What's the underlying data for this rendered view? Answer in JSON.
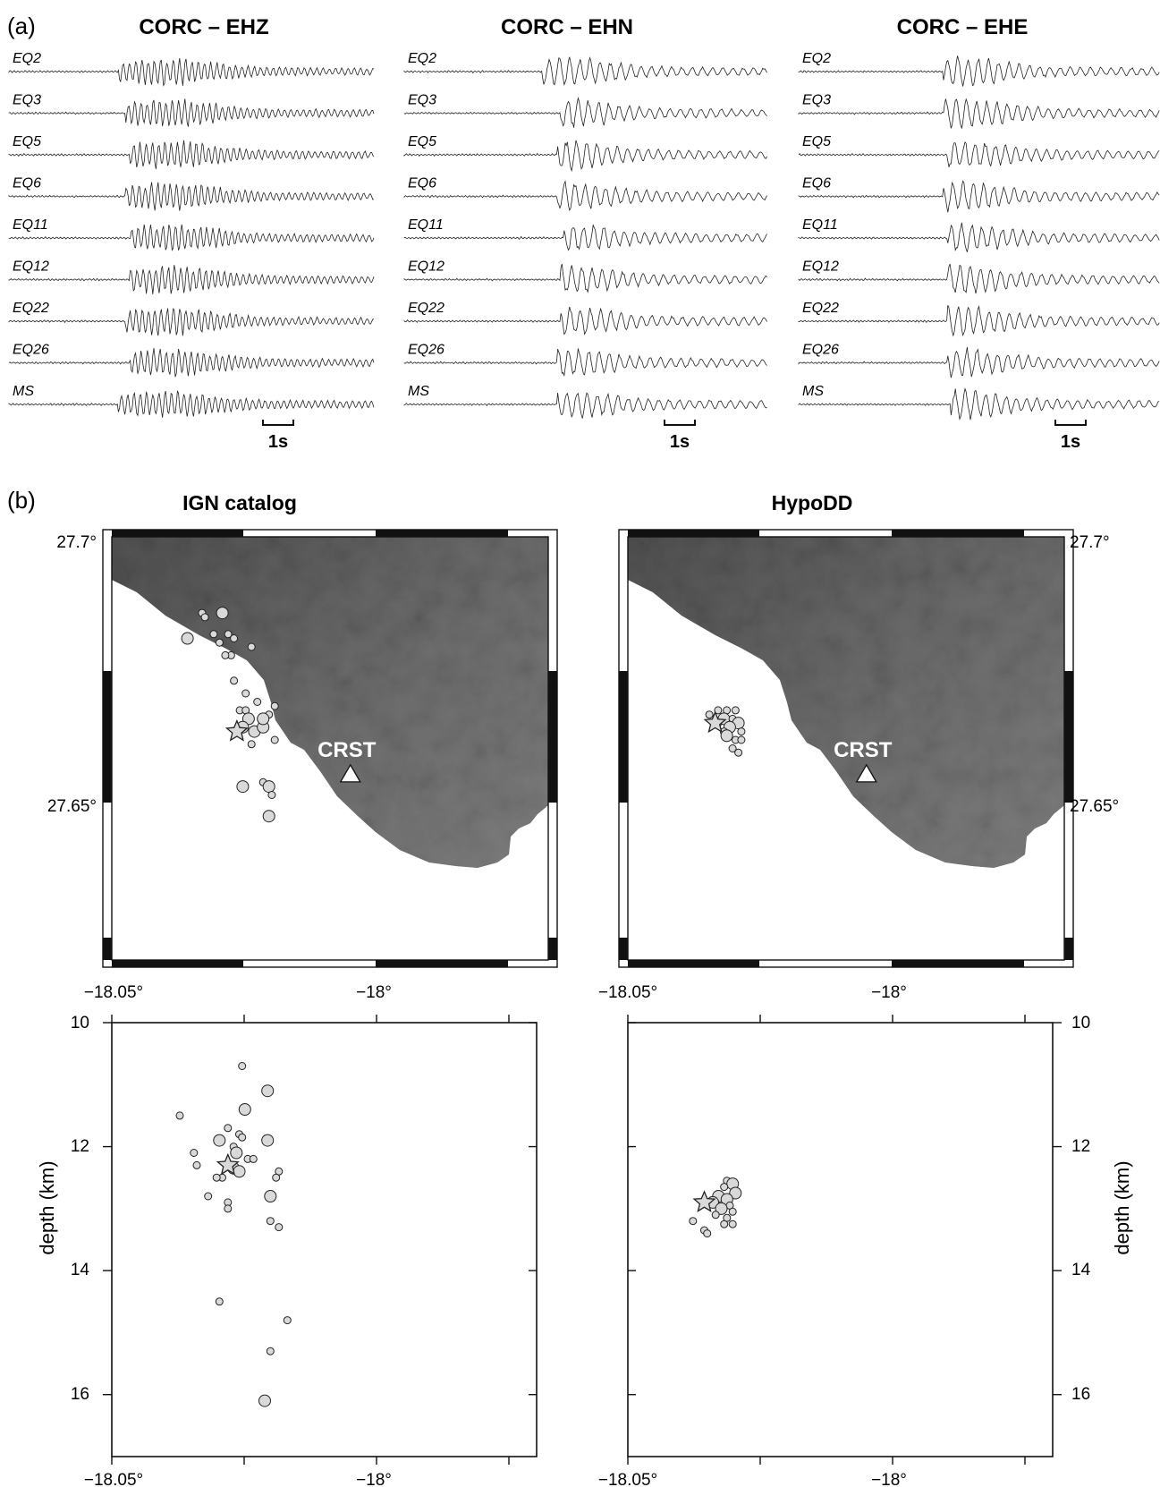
{
  "panel_a": {
    "label": "(a)",
    "scale_bar_label": "1s",
    "trace_labels": [
      "EQ2",
      "EQ3",
      "EQ5",
      "EQ6",
      "EQ11",
      "EQ12",
      "EQ22",
      "EQ26",
      "MS"
    ],
    "channels": [
      {
        "title": "CORC – EHZ"
      },
      {
        "title": "CORC – EHN"
      },
      {
        "title": "CORC – EHE"
      }
    ]
  },
  "panel_b": {
    "label": "(b)",
    "maps": [
      {
        "title": "IGN catalog",
        "station_label": "CRST"
      },
      {
        "title": "HypoDD",
        "station_label": "CRST"
      }
    ],
    "lat_ticks": [
      "27.7°",
      "27.65°"
    ],
    "lon_ticks": [
      "−18.05°",
      "−18°"
    ],
    "depth_ticks": [
      "10",
      "12",
      "14",
      "16"
    ],
    "depth_axis_title": "depth (km)",
    "colors": {
      "event_fill": "#d9d9d9",
      "event_stroke": "#222222",
      "terrain": "#6e6e6e"
    }
  },
  "chart_data": [
    {
      "type": "scatter",
      "name_ref": "IGN catalog map",
      "xlim": [
        -18.05,
        -17.9
      ],
      "ylim": [
        27.6,
        27.7
      ],
      "events": [
        {
          "lon": -18.024,
          "lat": 27.676,
          "mag": 2
        },
        {
          "lon": -18.019,
          "lat": 27.682,
          "mag": 1
        },
        {
          "lon": -18.018,
          "lat": 27.681,
          "mag": 1
        },
        {
          "lon": -18.012,
          "lat": 27.682,
          "mag": 2
        },
        {
          "lon": -18.015,
          "lat": 27.677,
          "mag": 1
        },
        {
          "lon": -18.01,
          "lat": 27.677,
          "mag": 1
        },
        {
          "lon": -18.013,
          "lat": 27.675,
          "mag": 1
        },
        {
          "lon": -18.008,
          "lat": 27.676,
          "mag": 1
        },
        {
          "lon": -18.009,
          "lat": 27.672,
          "mag": 1
        },
        {
          "lon": -18.011,
          "lat": 27.672,
          "mag": 1
        },
        {
          "lon": -18.002,
          "lat": 27.674,
          "mag": 1
        },
        {
          "lon": -18.008,
          "lat": 27.666,
          "mag": 1
        },
        {
          "lon": -18.004,
          "lat": 27.663,
          "mag": 1
        },
        {
          "lon": -18.0,
          "lat": 27.661,
          "mag": 1
        },
        {
          "lon": -17.996,
          "lat": 27.658,
          "mag": 1
        },
        {
          "lon": -17.994,
          "lat": 27.66,
          "mag": 1
        },
        {
          "lon": -18.006,
          "lat": 27.659,
          "mag": 1
        },
        {
          "lon": -18.004,
          "lat": 27.659,
          "mag": 1
        },
        {
          "lon": -18.003,
          "lat": 27.657,
          "mag": 2
        },
        {
          "lon": -18.001,
          "lat": 27.654,
          "mag": 2
        },
        {
          "lon": -18.005,
          "lat": 27.655,
          "mag": 2
        },
        {
          "lon": -17.998,
          "lat": 27.655,
          "mag": 2
        },
        {
          "lon": -17.998,
          "lat": 27.657,
          "mag": 2
        },
        {
          "lon": -18.002,
          "lat": 27.651,
          "mag": 1
        },
        {
          "lon": -17.994,
          "lat": 27.652,
          "mag": 1
        },
        {
          "lon": -18.005,
          "lat": 27.641,
          "mag": 2
        },
        {
          "lon": -17.998,
          "lat": 27.642,
          "mag": 1
        },
        {
          "lon": -17.996,
          "lat": 27.641,
          "mag": 2
        },
        {
          "lon": -17.995,
          "lat": 27.639,
          "mag": 1
        },
        {
          "lon": -17.996,
          "lat": 27.634,
          "mag": 2
        }
      ],
      "mainshock": {
        "lon": -18.007,
        "lat": 27.654
      },
      "station": {
        "name": "CRST",
        "lon": -17.968,
        "lat": 27.644
      }
    },
    {
      "type": "scatter",
      "name_ref": "HypoDD map",
      "xlim": [
        -18.05,
        -17.9
      ],
      "ylim": [
        27.6,
        27.7
      ],
      "events": [
        {
          "lon": -18.022,
          "lat": 27.658,
          "mag": 1
        },
        {
          "lon": -18.019,
          "lat": 27.659,
          "mag": 1
        },
        {
          "lon": -18.016,
          "lat": 27.659,
          "mag": 1
        },
        {
          "lon": -18.013,
          "lat": 27.659,
          "mag": 1
        },
        {
          "lon": -18.017,
          "lat": 27.657,
          "mag": 2
        },
        {
          "lon": -18.014,
          "lat": 27.657,
          "mag": 1
        },
        {
          "lon": -18.012,
          "lat": 27.656,
          "mag": 2
        },
        {
          "lon": -18.015,
          "lat": 27.655,
          "mag": 2
        },
        {
          "lon": -18.017,
          "lat": 27.654,
          "mag": 1
        },
        {
          "lon": -18.011,
          "lat": 27.654,
          "mag": 1
        },
        {
          "lon": -18.016,
          "lat": 27.653,
          "mag": 2
        },
        {
          "lon": -18.013,
          "lat": 27.652,
          "mag": 1
        },
        {
          "lon": -18.011,
          "lat": 27.652,
          "mag": 1
        },
        {
          "lon": -18.014,
          "lat": 27.65,
          "mag": 1
        },
        {
          "lon": -18.012,
          "lat": 27.649,
          "mag": 1
        },
        {
          "lon": -18.019,
          "lat": 27.656,
          "mag": 1
        }
      ],
      "mainshock": {
        "lon": -18.02,
        "lat": 27.656
      },
      "station": {
        "name": "CRST",
        "lon": -17.968,
        "lat": 27.644
      }
    },
    {
      "type": "scatter",
      "name_ref": "IGN catalog depth section",
      "xlim": [
        -18.05,
        -17.9
      ],
      "ylim": [
        17,
        10
      ],
      "ylabel": "depth (km)",
      "events": [
        {
          "lon": -18.004,
          "depth": 10.7,
          "mag": 1
        },
        {
          "lon": -17.995,
          "depth": 11.1,
          "mag": 2
        },
        {
          "lon": -18.003,
          "depth": 11.4,
          "mag": 2
        },
        {
          "lon": -18.026,
          "depth": 11.5,
          "mag": 1
        },
        {
          "lon": -18.009,
          "depth": 11.7,
          "mag": 1
        },
        {
          "lon": -18.005,
          "depth": 11.8,
          "mag": 1
        },
        {
          "lon": -18.004,
          "depth": 11.85,
          "mag": 1
        },
        {
          "lon": -18.012,
          "depth": 11.9,
          "mag": 2
        },
        {
          "lon": -17.995,
          "depth": 11.9,
          "mag": 2
        },
        {
          "lon": -18.007,
          "depth": 12.0,
          "mag": 1
        },
        {
          "lon": -18.021,
          "depth": 12.1,
          "mag": 1
        },
        {
          "lon": -18.006,
          "depth": 12.1,
          "mag": 2
        },
        {
          "lon": -18.002,
          "depth": 12.2,
          "mag": 1
        },
        {
          "lon": -18.0,
          "depth": 12.2,
          "mag": 1
        },
        {
          "lon": -18.02,
          "depth": 12.3,
          "mag": 1
        },
        {
          "lon": -18.007,
          "depth": 12.35,
          "mag": 2
        },
        {
          "lon": -18.005,
          "depth": 12.4,
          "mag": 2
        },
        {
          "lon": -17.991,
          "depth": 12.4,
          "mag": 1
        },
        {
          "lon": -17.992,
          "depth": 12.5,
          "mag": 1
        },
        {
          "lon": -18.011,
          "depth": 12.5,
          "mag": 1
        },
        {
          "lon": -18.013,
          "depth": 12.5,
          "mag": 1
        },
        {
          "lon": -18.016,
          "depth": 12.8,
          "mag": 1
        },
        {
          "lon": -17.994,
          "depth": 12.8,
          "mag": 2
        },
        {
          "lon": -18.009,
          "depth": 12.9,
          "mag": 1
        },
        {
          "lon": -18.009,
          "depth": 13.0,
          "mag": 1
        },
        {
          "lon": -17.994,
          "depth": 13.2,
          "mag": 1
        },
        {
          "lon": -17.991,
          "depth": 13.3,
          "mag": 1
        },
        {
          "lon": -18.012,
          "depth": 14.5,
          "mag": 1
        },
        {
          "lon": -17.988,
          "depth": 14.8,
          "mag": 1
        },
        {
          "lon": -17.994,
          "depth": 15.3,
          "mag": 1
        },
        {
          "lon": -17.996,
          "depth": 16.1,
          "mag": 2
        }
      ],
      "mainshock": {
        "lon": -18.009,
        "depth": 12.3
      }
    },
    {
      "type": "scatter",
      "name_ref": "HypoDD depth section",
      "xlim": [
        -18.05,
        -17.9
      ],
      "ylim": [
        17,
        10
      ],
      "ylabel": "depth (km)",
      "events": [
        {
          "lon": -18.015,
          "depth": 12.55,
          "mag": 1
        },
        {
          "lon": -18.013,
          "depth": 12.6,
          "mag": 2
        },
        {
          "lon": -18.016,
          "depth": 12.65,
          "mag": 1
        },
        {
          "lon": -18.012,
          "depth": 12.75,
          "mag": 2
        },
        {
          "lon": -18.018,
          "depth": 12.8,
          "mag": 2
        },
        {
          "lon": -18.015,
          "depth": 12.85,
          "mag": 2
        },
        {
          "lon": -18.02,
          "depth": 12.9,
          "mag": 2
        },
        {
          "lon": -18.014,
          "depth": 12.95,
          "mag": 1
        },
        {
          "lon": -18.017,
          "depth": 13.0,
          "mag": 2
        },
        {
          "lon": -18.013,
          "depth": 13.05,
          "mag": 1
        },
        {
          "lon": -18.019,
          "depth": 13.1,
          "mag": 1
        },
        {
          "lon": -18.015,
          "depth": 13.15,
          "mag": 1
        },
        {
          "lon": -18.027,
          "depth": 13.2,
          "mag": 1
        },
        {
          "lon": -18.016,
          "depth": 13.25,
          "mag": 1
        },
        {
          "lon": -18.013,
          "depth": 13.25,
          "mag": 1
        },
        {
          "lon": -18.023,
          "depth": 13.35,
          "mag": 1
        },
        {
          "lon": -18.022,
          "depth": 13.4,
          "mag": 1
        }
      ],
      "mainshock": {
        "lon": -18.023,
        "depth": 12.9
      }
    }
  ]
}
